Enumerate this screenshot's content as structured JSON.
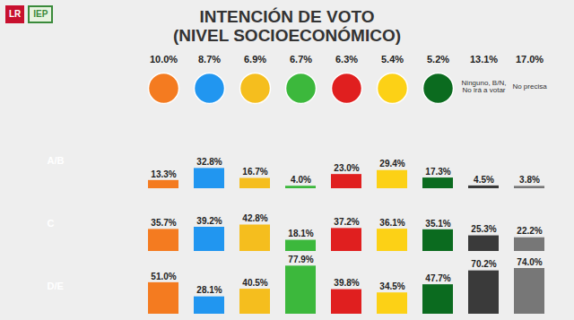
{
  "logos": [
    "LR",
    "IEP"
  ],
  "chart_data": {
    "type": "bar",
    "title": "INTENCIÓN DE VOTO",
    "subtitle": "(NIVEL SOCIOECONÓMICO)",
    "categories": [
      null,
      null,
      null,
      null,
      null,
      null,
      null,
      "Ninguno, B/N, No irá a votar",
      "No precisa"
    ],
    "colors": [
      "#f47b20",
      "#2196f0",
      "#f5be1e",
      "#3cb83c",
      "#e01f1f",
      "#fcd116",
      "#0b6b1f",
      "#3a3a3a",
      "#777777"
    ],
    "total": {
      "values": [
        10.0,
        8.7,
        6.9,
        6.7,
        6.3,
        5.4,
        5.2,
        13.1,
        17.0
      ],
      "value_labels": [
        "10.0%",
        "8.7%",
        "6.9%",
        "6.7%",
        "6.3%",
        "5.4%",
        "5.2%",
        "13.1%",
        "17.0%"
      ]
    },
    "series": [
      {
        "name": "A/B",
        "values": [
          13.3,
          32.8,
          16.7,
          4.0,
          23.0,
          29.4,
          17.3,
          4.5,
          3.8
        ],
        "value_labels": [
          "13.3%",
          "32.8%",
          "16.7%",
          "4.0%",
          "23.0%",
          "29.4%",
          "17.3%",
          "4.5%",
          "3.8%"
        ]
      },
      {
        "name": "C",
        "values": [
          35.7,
          39.2,
          42.8,
          18.1,
          37.2,
          36.1,
          35.1,
          25.3,
          22.2
        ],
        "value_labels": [
          "35.7%",
          "39.2%",
          "42.8%",
          "18.1%",
          "37.2%",
          "36.1%",
          "35.1%",
          "25.3%",
          "22.2%"
        ]
      },
      {
        "name": "D/E",
        "values": [
          51.0,
          28.1,
          40.5,
          77.9,
          39.8,
          34.5,
          47.7,
          70.2,
          74.0
        ],
        "value_labels": [
          "51.0%",
          "28.1%",
          "40.5%",
          "77.9%",
          "39.8%",
          "34.5%",
          "47.7%",
          "70.2%",
          "74.0%"
        ]
      }
    ],
    "ylim": [
      0,
      90
    ],
    "data_labels": true,
    "tick_labels": false
  }
}
